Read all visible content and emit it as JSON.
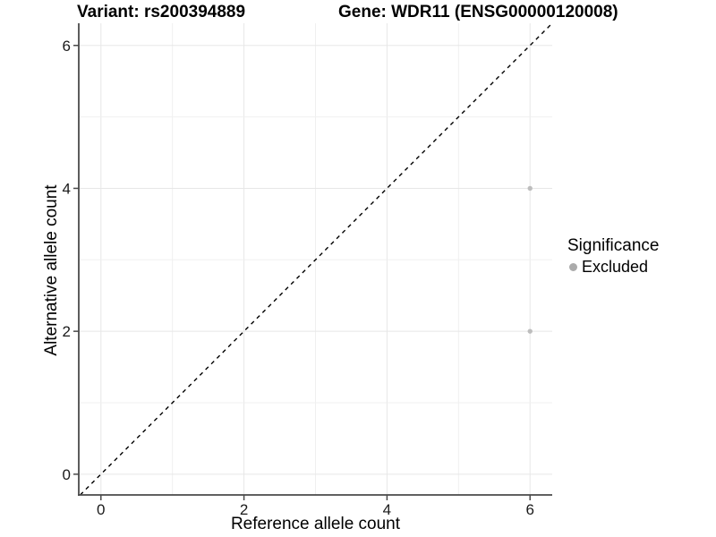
{
  "colors": {
    "background": "#ffffff",
    "grid_major": "#e7e7e7",
    "grid_minor": "#f0f0f0",
    "axis_line": "#4a4a4a",
    "tick_label": "#1a1a1a",
    "point": "#bdbdbd",
    "legend_point": "#ababab",
    "reference_line": "#000000"
  },
  "chart_data": {
    "type": "scatter",
    "titles": [
      "Variant: rs200394889",
      "Gene: WDR11 (ENSG00000120008)"
    ],
    "xlabel": "Reference allele count",
    "ylabel": "Alternative allele count",
    "xlim": [
      -0.31,
      6.31
    ],
    "ylim": [
      -0.29,
      6.31
    ],
    "xticks": [
      0,
      2,
      4,
      6
    ],
    "yticks": [
      0,
      2,
      4,
      6
    ],
    "grid_x": [
      0,
      1,
      2,
      3,
      4,
      5,
      6
    ],
    "grid_y": [
      0,
      1,
      2,
      3,
      4,
      5,
      6
    ],
    "grid": "on",
    "reference_line": {
      "type": "identity",
      "equation": "y = x",
      "style": "dashed"
    },
    "series": [
      {
        "name": "Excluded",
        "points": [
          {
            "x": 6,
            "y": 4
          },
          {
            "x": 6,
            "y": 2
          }
        ]
      }
    ],
    "legend": {
      "title": "Significance",
      "position": "right",
      "items": [
        {
          "label": "Excluded"
        }
      ]
    }
  }
}
